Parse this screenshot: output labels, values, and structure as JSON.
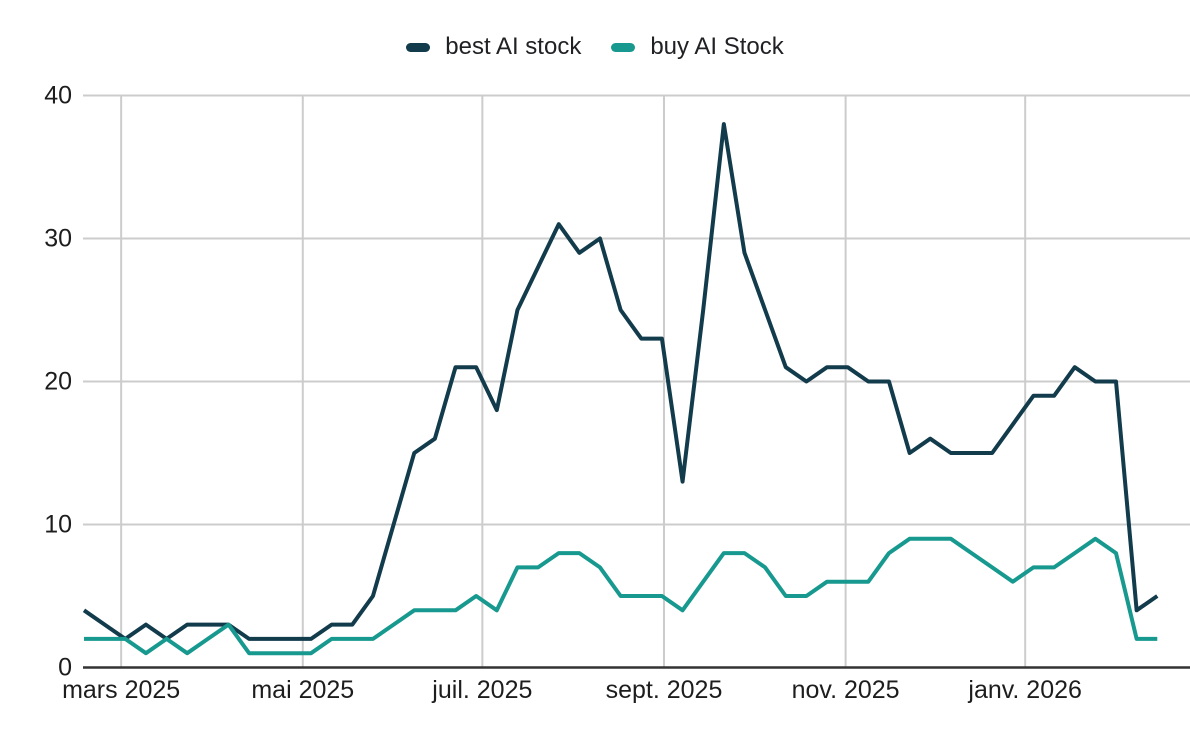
{
  "page": {
    "background": "#ffffff",
    "text_color": "#1d1d1d",
    "gridline_color": "#cccccc",
    "axis_color": "#333333"
  },
  "legend": {
    "items": [
      {
        "label": "best AI stock",
        "color": "#123b4c"
      },
      {
        "label": "buy AI Stock",
        "color": "#17998f"
      }
    ]
  },
  "chart_data": {
    "type": "line",
    "title": "",
    "xlabel": "",
    "ylabel": "",
    "grid": true,
    "legend_position": "top-center",
    "ylim": [
      0,
      40
    ],
    "y_axis": {
      "ticks": [
        0,
        10,
        20,
        30,
        40
      ],
      "tick_labels": [
        "0",
        "10",
        "20",
        "30",
        "40"
      ]
    },
    "x_axis": {
      "cadence": "weekly",
      "tick_labels": [
        "mars 2025",
        "mai 2025",
        "juil. 2025",
        "sept. 2025",
        "nov. 2025",
        "janv. 2026"
      ],
      "tick_point_index": [
        1.8,
        10.6,
        19.3,
        28.1,
        36.9,
        45.6
      ]
    },
    "series": [
      {
        "name": "best AI stock",
        "color": "#123b4c",
        "values": [
          4,
          3,
          2,
          3,
          2,
          3,
          3,
          3,
          2,
          2,
          2,
          2,
          3,
          3,
          5,
          10,
          15,
          16,
          21,
          21,
          18,
          25,
          28,
          31,
          29,
          30,
          25,
          23,
          23,
          13,
          25,
          38,
          29,
          25,
          21,
          20,
          21,
          21,
          20,
          20,
          15,
          16,
          15,
          15,
          15,
          17,
          19,
          19,
          21,
          20,
          20,
          4,
          5
        ]
      },
      {
        "name": "buy AI Stock",
        "color": "#17998f",
        "values": [
          2,
          2,
          2,
          1,
          2,
          1,
          2,
          3,
          1,
          1,
          1,
          1,
          2,
          2,
          2,
          3,
          4,
          4,
          4,
          5,
          4,
          7,
          7,
          8,
          8,
          7,
          5,
          5,
          5,
          4,
          6,
          8,
          8,
          7,
          5,
          5,
          6,
          6,
          6,
          8,
          9,
          9,
          9,
          8,
          7,
          6,
          7,
          7,
          8,
          9,
          8,
          2,
          2
        ]
      }
    ]
  }
}
